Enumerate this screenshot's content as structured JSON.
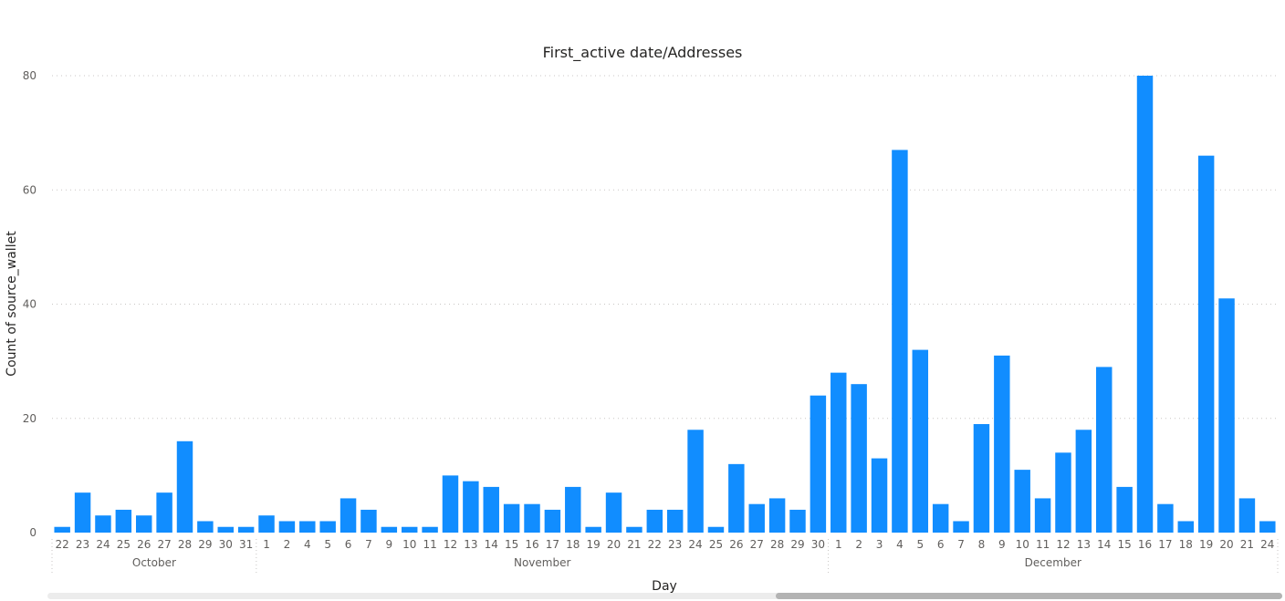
{
  "chart_data": {
    "type": "bar",
    "title": "First_active date/Addresses",
    "xlabel": "Day",
    "ylabel": "Count of source_wallet",
    "ylim": [
      0,
      80
    ],
    "yticks": [
      0,
      20,
      40,
      60,
      80
    ],
    "grid": true,
    "bar_color": "#118DFF",
    "groups": [
      {
        "label": "October",
        "days": [
          "22",
          "23",
          "24",
          "25",
          "26",
          "27",
          "28",
          "29",
          "30",
          "31"
        ]
      },
      {
        "label": "November",
        "days": [
          "1",
          "2",
          "4",
          "5",
          "6",
          "7",
          "9",
          "10",
          "11",
          "12",
          "13",
          "14",
          "15",
          "16",
          "17",
          "18",
          "19",
          "20",
          "21",
          "22",
          "23",
          "24",
          "25",
          "26",
          "27",
          "28",
          "29",
          "30"
        ]
      },
      {
        "label": "December",
        "days": [
          "1",
          "2",
          "3",
          "4",
          "5",
          "6",
          "7",
          "8",
          "9",
          "10",
          "11",
          "12",
          "13",
          "14",
          "15",
          "16",
          "17",
          "18",
          "19",
          "20",
          "21",
          "24"
        ]
      }
    ],
    "values": [
      1,
      7,
      3,
      4,
      3,
      7,
      16,
      2,
      1,
      1,
      3,
      2,
      2,
      2,
      6,
      4,
      1,
      1,
      1,
      10,
      9,
      8,
      5,
      5,
      4,
      8,
      1,
      7,
      1,
      4,
      4,
      18,
      1,
      12,
      5,
      6,
      4,
      24,
      28,
      26,
      13,
      67,
      32,
      5,
      2,
      19,
      31,
      11,
      6,
      14,
      18,
      29,
      8,
      80,
      5,
      2,
      66,
      41,
      6,
      2
    ]
  },
  "scrollbar": {
    "thumb_start": 0.59,
    "thumb_end": 1.0
  }
}
